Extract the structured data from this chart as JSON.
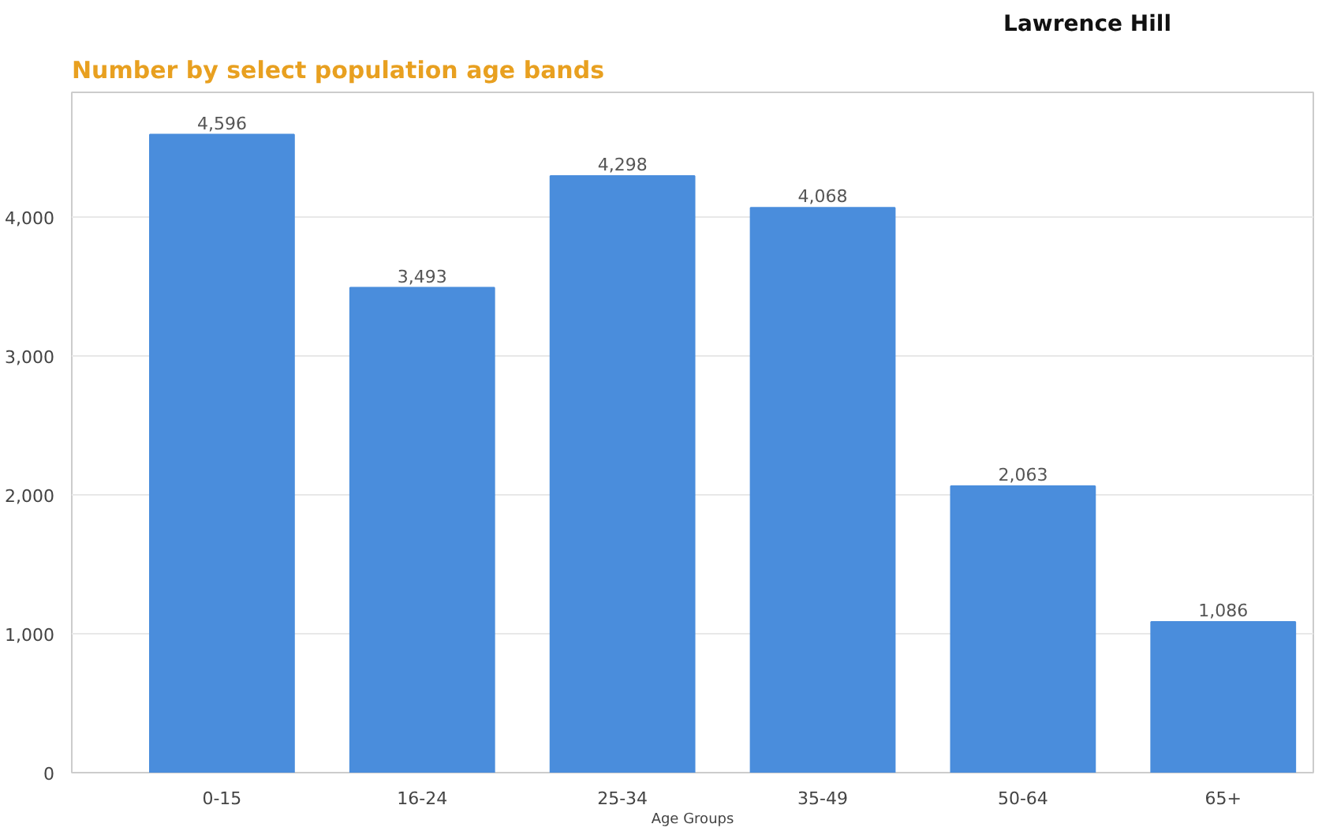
{
  "chart_data": {
    "type": "bar",
    "title": "Number by select population age bands",
    "subtitle": "Lawrence Hill",
    "xlabel": "Age Groups",
    "categories": [
      "0-15",
      "16-24",
      "25-34",
      "35-49",
      "50-64",
      "65+"
    ],
    "values": [
      4596,
      3493,
      4298,
      4068,
      2063,
      1086
    ],
    "color": "#4a8ddc",
    "value_labels": [
      "4,596",
      "3,493",
      "4,298",
      "4,068",
      "2,063",
      "1,086"
    ],
    "ylim": [
      0,
      4900
    ],
    "yticks": [
      0,
      {
        "value": 1000,
        "label": "1,000"
      },
      {
        "value": 2000,
        "label": "2,000"
      },
      {
        "value": 3000,
        "label": "3,000"
      },
      {
        "value": 4000,
        "label": "4,000"
      }
    ],
    "grid": "y"
  }
}
